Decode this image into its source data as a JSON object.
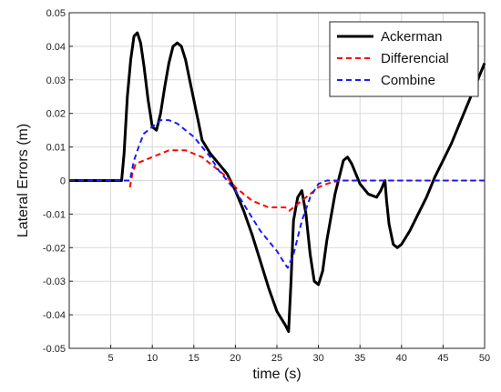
{
  "chart_data": {
    "type": "line",
    "title": "",
    "xlabel": "time (s)",
    "ylabel": "Lateral Errors (m)",
    "xlim": [
      0,
      50
    ],
    "ylim": [
      -0.05,
      0.05
    ],
    "xticks": [
      5,
      10,
      15,
      20,
      25,
      30,
      35,
      40,
      45,
      50
    ],
    "yticks": [
      -0.05,
      -0.04,
      -0.03,
      -0.02,
      -0.01,
      0,
      0.01,
      0.02,
      0.03,
      0.04,
      0.05
    ],
    "xtick_labels": [
      "5",
      "10",
      "15",
      "20",
      "25",
      "30",
      "35",
      "40",
      "45",
      "50"
    ],
    "ytick_labels": [
      "-0.05",
      "-0.04",
      "-0.03",
      "-0.02",
      "-0.01",
      "0",
      "0.01",
      "0.02",
      "0.03",
      "0.04",
      "0.05"
    ],
    "grid": true,
    "legend_position": "top-right",
    "series": [
      {
        "name": "Ackerman",
        "color": "#000000",
        "style": "solid",
        "x": [
          0,
          6.3,
          6.6,
          7.0,
          7.4,
          7.8,
          8.2,
          8.6,
          9.0,
          9.5,
          10.0,
          10.5,
          11.0,
          11.5,
          12.0,
          12.5,
          13.0,
          13.5,
          14.0,
          14.5,
          15.0,
          15.5,
          16.0,
          17.0,
          18.0,
          19.0,
          20.0,
          21.0,
          22.0,
          23.0,
          24.0,
          25.0,
          26.0,
          26.4,
          26.7,
          27.0,
          27.5,
          28.0,
          28.5,
          29.0,
          29.5,
          30.0,
          30.5,
          31.0,
          32.0,
          33.0,
          33.5,
          34.0,
          35.0,
          36.0,
          37.0,
          37.5,
          38.0,
          38.2,
          38.5,
          39.0,
          39.5,
          40.0,
          41.0,
          42.0,
          43.0,
          44.0,
          45.0,
          46.0,
          47.0,
          48.0,
          49.0,
          50.0
        ],
        "y": [
          0,
          0,
          0.008,
          0.025,
          0.036,
          0.043,
          0.044,
          0.041,
          0.034,
          0.024,
          0.016,
          0.015,
          0.02,
          0.028,
          0.035,
          0.04,
          0.041,
          0.04,
          0.036,
          0.03,
          0.024,
          0.018,
          0.012,
          0.008,
          0.005,
          0.002,
          -0.003,
          -0.009,
          -0.016,
          -0.024,
          -0.032,
          -0.039,
          -0.043,
          -0.045,
          -0.03,
          -0.012,
          -0.005,
          -0.003,
          -0.01,
          -0.022,
          -0.03,
          -0.031,
          -0.027,
          -0.018,
          -0.004,
          0.006,
          0.007,
          0.005,
          -0.001,
          -0.004,
          -0.005,
          -0.003,
          0,
          -0.006,
          -0.013,
          -0.019,
          -0.02,
          -0.019,
          -0.015,
          -0.01,
          -0.005,
          0.001,
          0.006,
          0.011,
          0.017,
          0.023,
          0.029,
          0.035
        ]
      },
      {
        "name": "Differencial",
        "color": "#ff0000",
        "style": "dashed",
        "x": [
          7.3,
          7.6,
          8.0,
          9.0,
          10.0,
          11.0,
          12.0,
          13.0,
          14.0,
          15.0,
          16.0,
          17.0,
          18.0,
          19.0,
          20.0,
          21.0,
          22.0,
          23.0,
          24.0,
          25.0,
          26.0,
          26.5,
          27.0,
          28.0,
          29.0,
          30.0,
          31.0,
          32.0,
          33.0,
          35.0,
          40.0,
          45.0,
          50.0
        ],
        "y": [
          -0.002,
          0.002,
          0.005,
          0.006,
          0.007,
          0.008,
          0.009,
          0.009,
          0.009,
          0.008,
          0.007,
          0.005,
          0.003,
          0.001,
          -0.002,
          -0.004,
          -0.006,
          -0.007,
          -0.008,
          -0.008,
          -0.008,
          -0.009,
          -0.008,
          -0.006,
          -0.004,
          -0.002,
          -0.001,
          -0.0003,
          0,
          0,
          0,
          0,
          0
        ]
      },
      {
        "name": "Combine",
        "color": "#1a1aff",
        "style": "dashed",
        "x": [
          0,
          7.3,
          7.8,
          8.5,
          9.0,
          10.0,
          11.0,
          12.0,
          13.0,
          14.0,
          15.0,
          16.0,
          17.0,
          18.0,
          19.0,
          20.0,
          21.0,
          22.0,
          23.0,
          24.0,
          25.0,
          26.0,
          26.3,
          27.0,
          28.0,
          29.0,
          30.0,
          31.0,
          32.0,
          33.0,
          35.0,
          40.0,
          45.0,
          50.0
        ],
        "y": [
          0,
          0,
          0.006,
          0.011,
          0.014,
          0.016,
          0.018,
          0.018,
          0.017,
          0.015,
          0.013,
          0.01,
          0.007,
          0.003,
          0,
          -0.003,
          -0.007,
          -0.011,
          -0.015,
          -0.018,
          -0.021,
          -0.025,
          -0.026,
          -0.022,
          -0.012,
          -0.005,
          -0.001,
          0,
          0,
          0,
          0,
          0,
          0,
          0
        ]
      }
    ]
  }
}
